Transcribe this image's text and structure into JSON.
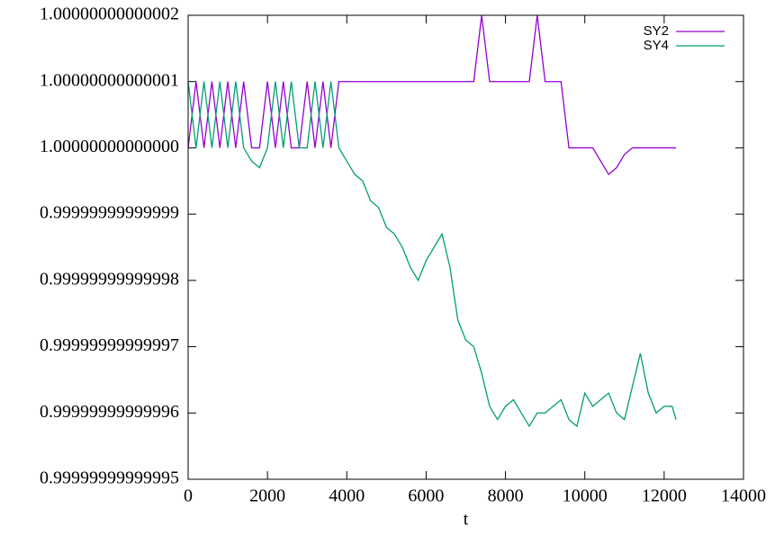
{
  "chart_data": {
    "type": "line",
    "xlabel": "t",
    "x": [
      0,
      200,
      400,
      600,
      800,
      1000,
      1200,
      1400,
      1600,
      1800,
      2000,
      2200,
      2400,
      2600,
      2800,
      3000,
      3200,
      3400,
      3600,
      3800,
      4000,
      4200,
      4400,
      4600,
      4800,
      5000,
      5200,
      5400,
      5600,
      5800,
      6000,
      6200,
      6400,
      6600,
      6800,
      7000,
      7200,
      7400,
      7600,
      7800,
      8000,
      8200,
      8400,
      8600,
      8800,
      9000,
      9200,
      9400,
      9600,
      9800,
      10000,
      10200,
      10400,
      10600,
      10800,
      11000,
      11200,
      11400,
      11600,
      11800,
      12000,
      12200,
      12300
    ],
    "series": [
      {
        "name": "SY2",
        "color": "#9400d3",
        "values": [
          1,
          1.00000000000001,
          1,
          1.00000000000001,
          1,
          1.00000000000001,
          1,
          1.00000000000001,
          1,
          1,
          1.00000000000001,
          1,
          1.00000000000001,
          1,
          1,
          1.00000000000001,
          1,
          1.00000000000001,
          1,
          1.00000000000001,
          1.00000000000001,
          1.00000000000001,
          1.00000000000001,
          1.00000000000001,
          1.00000000000001,
          1.00000000000001,
          1.00000000000001,
          1.00000000000001,
          1.00000000000001,
          1.00000000000001,
          1.00000000000001,
          1.00000000000001,
          1.00000000000001,
          1.00000000000001,
          1.00000000000001,
          1.00000000000001,
          1.00000000000001,
          1.00000000000002,
          1.00000000000001,
          1.00000000000001,
          1.00000000000001,
          1.00000000000001,
          1.00000000000001,
          1.00000000000001,
          1.00000000000002,
          1.00000000000001,
          1.00000000000001,
          1.00000000000001,
          1,
          1,
          1,
          1,
          0.999999999999998,
          0.999999999999996,
          0.999999999999997,
          0.999999999999999,
          1,
          1,
          1,
          1,
          1,
          1,
          1
        ]
      },
      {
        "name": "SY4",
        "color": "#009e73",
        "values": [
          1.00000000000001,
          1,
          1.00000000000001,
          1,
          1.00000000000001,
          1,
          1.00000000000001,
          1,
          0.999999999999998,
          0.999999999999997,
          1,
          1.00000000000001,
          1,
          1.00000000000001,
          1,
          1,
          1.00000000000001,
          1,
          1.00000000000001,
          1,
          0.999999999999998,
          0.999999999999996,
          0.999999999999995,
          0.999999999999992,
          0.999999999999991,
          0.999999999999988,
          0.999999999999987,
          0.999999999999985,
          0.999999999999982,
          0.99999999999998,
          0.999999999999983,
          0.999999999999985,
          0.999999999999987,
          0.999999999999982,
          0.999999999999974,
          0.999999999999971,
          0.99999999999997,
          0.999999999999966,
          0.999999999999961,
          0.999999999999959,
          0.999999999999961,
          0.999999999999962,
          0.99999999999996,
          0.999999999999958,
          0.99999999999996,
          0.99999999999996,
          0.999999999999961,
          0.999999999999962,
          0.999999999999959,
          0.999999999999958,
          0.999999999999963,
          0.999999999999961,
          0.999999999999962,
          0.999999999999963,
          0.99999999999996,
          0.999999999999959,
          0.999999999999964,
          0.999999999999969,
          0.999999999999963,
          0.99999999999996,
          0.999999999999961,
          0.999999999999961,
          0.999999999999959
        ]
      }
    ],
    "xlim": [
      0,
      14000
    ],
    "xticks": [
      0,
      2000,
      4000,
      6000,
      8000,
      10000,
      12000,
      14000
    ],
    "ylim": [
      0.99999999999995,
      1.00000000000002
    ],
    "yticks": [
      {
        "value": 0.99999999999995,
        "label": "0.99999999999995"
      },
      {
        "value": 0.99999999999996,
        "label": "0.99999999999996"
      },
      {
        "value": 0.99999999999997,
        "label": "0.99999999999997"
      },
      {
        "value": 0.99999999999998,
        "label": "0.99999999999998"
      },
      {
        "value": 0.99999999999999,
        "label": "0.99999999999999"
      },
      {
        "value": 1,
        "label": "1.00000000000000"
      },
      {
        "value": 1.00000000000001,
        "label": "1.00000000000001"
      },
      {
        "value": 1.00000000000002,
        "label": "1.00000000000002"
      }
    ],
    "legend": "top-right",
    "grid": false
  }
}
